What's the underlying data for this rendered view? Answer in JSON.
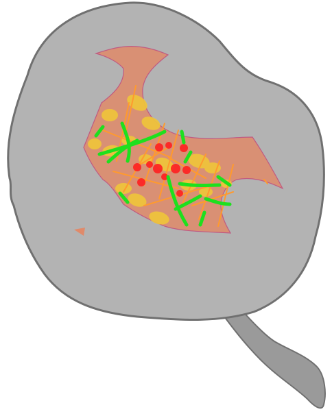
{
  "colors": {
    "background": "#ffffff",
    "body_fill": "#b3b3b3",
    "body_stroke": "#707070",
    "stem_fill": "#9a9a9a",
    "cavity_fill": "#e08a6a",
    "cavity_edge": "#c24a7a",
    "yellow_blob": "#f0c63a",
    "orange_fiber": "#ff9a2e",
    "green_fiber": "#1ee01e",
    "red_spot": "#ff2020"
  },
  "icons": {
    "main": "organic-cell-illustration-icon",
    "stem": "stalk-icon"
  }
}
